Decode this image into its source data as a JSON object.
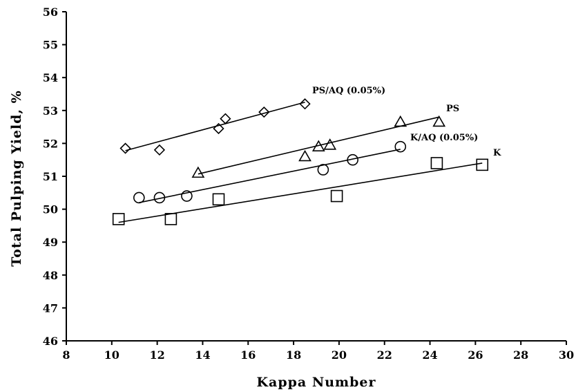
{
  "chart_data": {
    "type": "scatter",
    "title": "",
    "xlabel": "Kappa Number",
    "ylabel": "Total Pulping Yield, %",
    "xlim": [
      8,
      30
    ],
    "ylim": [
      46,
      56
    ],
    "xticks": [
      "8",
      "10",
      "12",
      "14",
      "16",
      "18",
      "20",
      "22",
      "24",
      "26",
      "28",
      "30"
    ],
    "yticks": [
      "46",
      "47",
      "48",
      "49",
      "50",
      "51",
      "52",
      "53",
      "54",
      "55",
      "56"
    ],
    "grid": false,
    "series": [
      {
        "name": "PS/AQ (0.05%)",
        "marker": "diamond",
        "points": [
          [
            10.6,
            51.85
          ],
          [
            12.1,
            51.8
          ],
          [
            14.7,
            52.45
          ],
          [
            15.0,
            52.75
          ],
          [
            16.7,
            52.95
          ],
          [
            18.5,
            53.2
          ]
        ],
        "fit": [
          [
            10.6,
            51.78
          ],
          [
            18.5,
            53.25
          ]
        ]
      },
      {
        "name": "PS",
        "marker": "triangle",
        "points": [
          [
            13.8,
            51.1
          ],
          [
            18.5,
            51.6
          ],
          [
            19.1,
            51.9
          ],
          [
            19.6,
            51.95
          ],
          [
            22.7,
            52.65
          ],
          [
            24.4,
            52.65
          ]
        ],
        "fit": [
          [
            13.8,
            51.07
          ],
          [
            24.4,
            52.8
          ]
        ]
      },
      {
        "name": "K/AQ (0.05%)",
        "marker": "circle",
        "points": [
          [
            11.2,
            50.35
          ],
          [
            12.1,
            50.35
          ],
          [
            13.3,
            50.4
          ],
          [
            19.3,
            51.2
          ],
          [
            20.6,
            51.5
          ],
          [
            22.7,
            51.9
          ]
        ],
        "fit": [
          [
            11.2,
            50.2
          ],
          [
            22.7,
            51.82
          ]
        ]
      },
      {
        "name": "K",
        "marker": "square",
        "points": [
          [
            10.3,
            49.7
          ],
          [
            12.6,
            49.7
          ],
          [
            14.7,
            50.3
          ],
          [
            19.9,
            50.4
          ],
          [
            24.3,
            51.4
          ],
          [
            26.3,
            51.35
          ]
        ],
        "fit": [
          [
            10.3,
            49.6
          ],
          [
            26.3,
            51.4
          ]
        ]
      }
    ]
  }
}
